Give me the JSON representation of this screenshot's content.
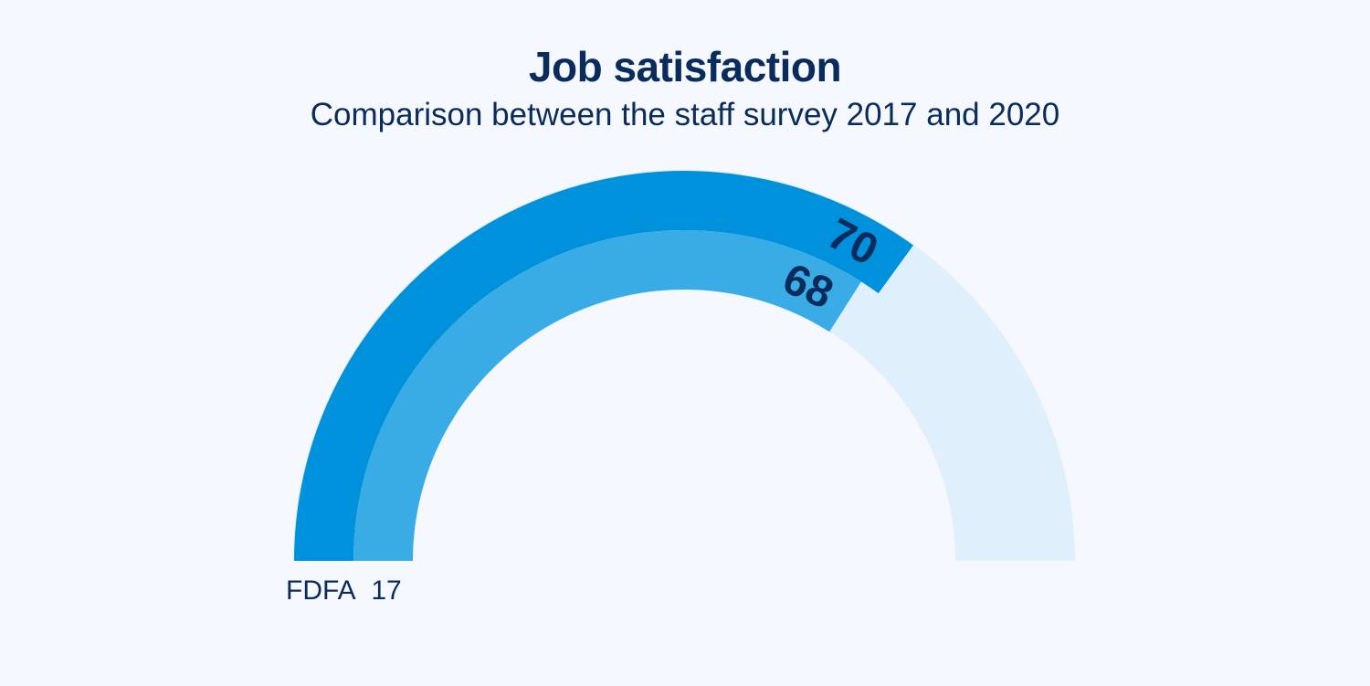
{
  "chart_data": {
    "type": "gauge",
    "title": "Job satisfaction",
    "subtitle": "Comparison between the staff survey 2017 and 2020",
    "range": [
      0,
      100
    ],
    "series": [
      {
        "value": 70,
        "label": "70",
        "color": "#0091dc"
      },
      {
        "value": 68,
        "label": "68",
        "color": "#3aace5"
      }
    ],
    "track_color": "#dff0fc",
    "footer_label": "FDFA  17"
  },
  "colors": {
    "background": "#f5f8fe",
    "text": "#0a2c5c"
  }
}
